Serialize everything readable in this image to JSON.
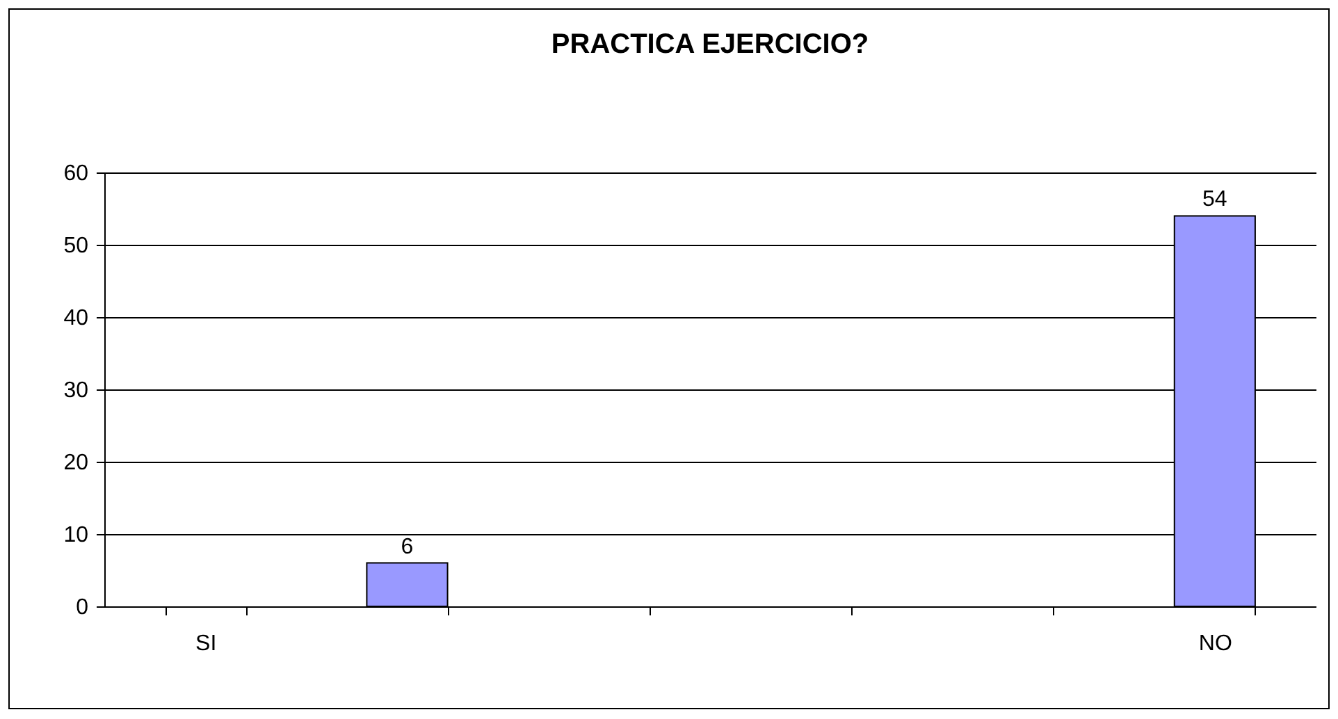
{
  "chart_data": {
    "type": "bar",
    "title": "PRACTICA EJERCICIO?",
    "categories": [
      "SI",
      null,
      null,
      null,
      null,
      "NO"
    ],
    "values": [
      null,
      6,
      null,
      null,
      null,
      54
    ],
    "color": "#9999ff",
    "ylim": [
      0,
      60
    ],
    "yticks": [
      0,
      10,
      20,
      30,
      40,
      50,
      60
    ],
    "grid": "y",
    "data_labels": true
  }
}
